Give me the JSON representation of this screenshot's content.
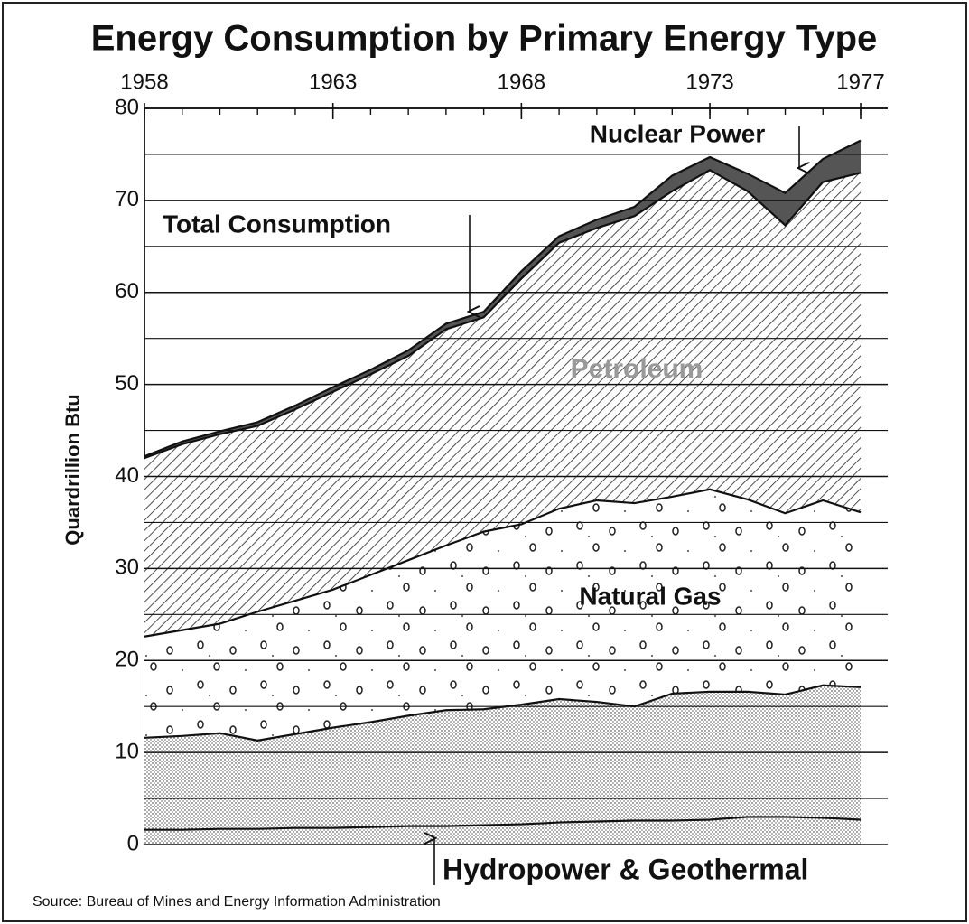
{
  "chart_data": {
    "type": "stacked_area",
    "title": "Energy Consumption by Primary Energy Type",
    "y_label": "Quardrillion Btu",
    "source": "Source: Bureau of Mines and Energy Information Administration",
    "annotations": [
      "Total Consumption"
    ],
    "x": [
      1958,
      1959,
      1960,
      1961,
      1962,
      1963,
      1964,
      1965,
      1966,
      1967,
      1968,
      1969,
      1970,
      1971,
      1972,
      1973,
      1974,
      1975,
      1976,
      1977
    ],
    "xlim": [
      1958,
      1977
    ],
    "xticks": [
      1958,
      1963,
      1968,
      1973,
      1977
    ],
    "ylim": [
      0,
      80
    ],
    "yticks": [
      0,
      10,
      20,
      30,
      40,
      50,
      60,
      70,
      80
    ],
    "yminor": [
      5,
      15,
      25,
      35,
      45,
      55,
      65,
      75
    ],
    "grid": true,
    "series": [
      {
        "name": "Hydropower & Geothermal",
        "color": "#bdbdbd",
        "pattern": "stipple",
        "values": [
          1.6,
          1.6,
          1.7,
          1.7,
          1.8,
          1.8,
          1.9,
          2.0,
          2.0,
          2.1,
          2.2,
          2.4,
          2.5,
          2.6,
          2.6,
          2.7,
          3.0,
          3.0,
          2.9,
          2.7
        ]
      },
      {
        "color": "#8a8a8a",
        "pattern": "stipple",
        "values": [
          10.0,
          10.2,
          10.4,
          9.6,
          10.2,
          10.9,
          11.4,
          12.0,
          12.6,
          12.6,
          13.0,
          13.4,
          13.0,
          12.4,
          13.8,
          13.9,
          13.6,
          13.3,
          14.4,
          14.4
        ]
      },
      {
        "name": "Natural Gas",
        "color": "#222222",
        "pattern": "dots",
        "values": [
          11.0,
          11.5,
          11.9,
          14.0,
          14.5,
          15.0,
          16.0,
          16.9,
          17.9,
          19.3,
          19.6,
          20.7,
          21.9,
          22.1,
          21.4,
          22.0,
          20.9,
          19.7,
          20.1,
          19.0
        ]
      },
      {
        "name": "Petroleum",
        "color": "#222222",
        "pattern": "hatch",
        "values": [
          19.4,
          20.2,
          20.6,
          20.2,
          20.8,
          21.5,
          21.8,
          22.2,
          23.5,
          23.3,
          26.7,
          28.9,
          29.6,
          31.2,
          33.2,
          34.7,
          33.5,
          31.3,
          34.6,
          36.9
        ]
      },
      {
        "name": "Nuclear Power",
        "color": "#555555",
        "pattern": "solid",
        "values": [
          0.2,
          0.3,
          0.3,
          0.4,
          0.4,
          0.5,
          0.5,
          0.6,
          0.6,
          0.6,
          0.8,
          0.7,
          0.9,
          1.0,
          1.7,
          1.4,
          1.9,
          3.5,
          2.5,
          3.5
        ]
      }
    ]
  }
}
